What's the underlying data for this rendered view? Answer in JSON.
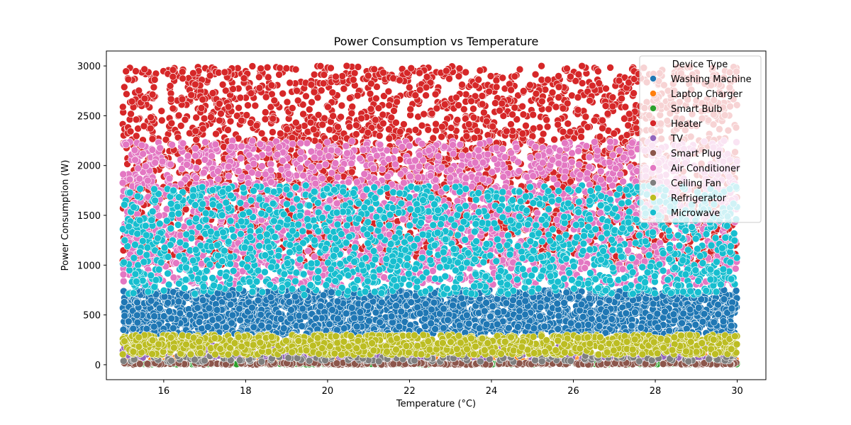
{
  "chart_data": {
    "type": "scatter",
    "title": "Power Consumption vs Temperature",
    "xlabel": "Temperature (°C)",
    "ylabel": "Power Consumption (W)",
    "xlim": [
      14.6,
      30.7
    ],
    "ylim": [
      -150,
      3150
    ],
    "x_ticks": [
      16,
      18,
      20,
      22,
      24,
      26,
      28,
      30
    ],
    "y_ticks": [
      0,
      500,
      1000,
      1500,
      2000,
      2500,
      3000
    ],
    "grid": false,
    "legend": {
      "title": "Device Type",
      "placement": "top-right"
    },
    "series": [
      {
        "name": "Washing Machine",
        "color": "#1f77b4",
        "x_range": [
          15,
          30
        ],
        "y_range": [
          300,
          750
        ],
        "points": 2600
      },
      {
        "name": "Laptop Charger",
        "color": "#ff7f0e",
        "x_range": [
          15,
          30
        ],
        "y_range": [
          30,
          100
        ],
        "points": 350
      },
      {
        "name": "Smart Bulb",
        "color": "#2ca02c",
        "x_range": [
          15,
          30
        ],
        "y_range": [
          5,
          15
        ],
        "points": 300
      },
      {
        "name": "Heater",
        "color": "#d62728",
        "x_range": [
          15,
          30
        ],
        "y_range": [
          1000,
          3000
        ],
        "points": 3300
      },
      {
        "name": "TV",
        "color": "#9467bd",
        "x_range": [
          15,
          30
        ],
        "y_range": [
          50,
          200
        ],
        "points": 420
      },
      {
        "name": "Smart Plug",
        "color": "#8c564b",
        "x_range": [
          15,
          30
        ],
        "y_range": [
          1,
          20
        ],
        "points": 320
      },
      {
        "name": "Air Conditioner",
        "color": "#e377c2",
        "x_range": [
          15,
          30
        ],
        "y_range": [
          800,
          2250
        ],
        "points": 2300
      },
      {
        "name": "Ceiling Fan",
        "color": "#7f7f7f",
        "x_range": [
          15,
          30
        ],
        "y_range": [
          30,
          90
        ],
        "points": 150
      },
      {
        "name": "Refrigerator",
        "color": "#bcbd22",
        "x_range": [
          15,
          30
        ],
        "y_range": [
          100,
          300
        ],
        "points": 1200
      },
      {
        "name": "Microwave",
        "color": "#17becf",
        "x_range": [
          15,
          30
        ],
        "y_range": [
          700,
          1800
        ],
        "points": 1600
      }
    ]
  }
}
